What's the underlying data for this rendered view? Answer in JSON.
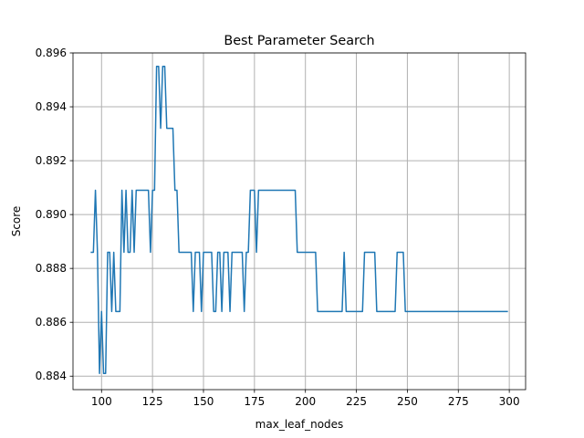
{
  "chart_data": {
    "type": "line",
    "title": "Best Parameter Search",
    "xlabel": "max_leaf_nodes",
    "ylabel": "Score",
    "xlim": [
      86,
      308
    ],
    "ylim": [
      0.8835,
      0.896
    ],
    "xticks": [
      100,
      125,
      150,
      175,
      200,
      225,
      250,
      275,
      300
    ],
    "xtick_labels": [
      "100",
      "125",
      "150",
      "175",
      "200",
      "225",
      "250",
      "275",
      "300"
    ],
    "yticks": [
      0.884,
      0.886,
      0.888,
      0.89,
      0.892,
      0.894,
      0.896
    ],
    "ytick_labels": [
      "0.884",
      "0.886",
      "0.888",
      "0.890",
      "0.892",
      "0.894",
      "0.896"
    ],
    "grid": true,
    "line_color": "#1f77b4",
    "series": [
      {
        "x": [
          95,
          96,
          97,
          98,
          99,
          100,
          101,
          102,
          103,
          104,
          105,
          106,
          107,
          108,
          109,
          110,
          111,
          112,
          113,
          114,
          115,
          116,
          117,
          118,
          119,
          120,
          121,
          122,
          123,
          124,
          125,
          126,
          127,
          128,
          129,
          130,
          131,
          132,
          133,
          134,
          135,
          136,
          137,
          138,
          139,
          140,
          141,
          142,
          143,
          144,
          145,
          146,
          147,
          148,
          149,
          150,
          151,
          152,
          153,
          154,
          155,
          156,
          157,
          158,
          159,
          160,
          161,
          162,
          163,
          164,
          165,
          166,
          167,
          168,
          169,
          170,
          171,
          172,
          173,
          174,
          175,
          176,
          177,
          178,
          179,
          180,
          181,
          182,
          183,
          184,
          185,
          186,
          187,
          188,
          189,
          190,
          191,
          192,
          193,
          194,
          195,
          196,
          197,
          198,
          199,
          200,
          201,
          202,
          203,
          204,
          205,
          206,
          207,
          208,
          209,
          210,
          211,
          212,
          213,
          214,
          215,
          216,
          217,
          218,
          219,
          220,
          221,
          222,
          223,
          224,
          225,
          226,
          227,
          228,
          229,
          230,
          231,
          232,
          233,
          234,
          235,
          236,
          237,
          238,
          239,
          240,
          241,
          242,
          243,
          244,
          245,
          246,
          247,
          248,
          249,
          250,
          251,
          252,
          253,
          254,
          255,
          256,
          257,
          258,
          259,
          260,
          261,
          262,
          263,
          264,
          265,
          266,
          267,
          268,
          269,
          270,
          271,
          272,
          273,
          274,
          275,
          276,
          277,
          278,
          279,
          280,
          281,
          282,
          283,
          284,
          285,
          286,
          287,
          288,
          289,
          290,
          291,
          292,
          293,
          294,
          295,
          296,
          297,
          298,
          299
        ],
        "y": [
          0.8886,
          0.8886,
          0.8909,
          0.8886,
          0.8841,
          0.8864,
          0.8841,
          0.8841,
          0.8886,
          0.8886,
          0.8864,
          0.8886,
          0.8864,
          0.8864,
          0.8864,
          0.8909,
          0.8886,
          0.8909,
          0.8886,
          0.8886,
          0.8909,
          0.8886,
          0.8909,
          0.8909,
          0.8909,
          0.8909,
          0.8909,
          0.8909,
          0.8909,
          0.8886,
          0.8909,
          0.8909,
          0.8955,
          0.8955,
          0.8932,
          0.8955,
          0.8955,
          0.8932,
          0.8932,
          0.8932,
          0.8932,
          0.8909,
          0.8909,
          0.8886,
          0.8886,
          0.8886,
          0.8886,
          0.8886,
          0.8886,
          0.8886,
          0.8864,
          0.8886,
          0.8886,
          0.8886,
          0.8864,
          0.8886,
          0.8886,
          0.8886,
          0.8886,
          0.8886,
          0.8864,
          0.8864,
          0.8886,
          0.8886,
          0.8864,
          0.8886,
          0.8886,
          0.8886,
          0.8864,
          0.8886,
          0.8886,
          0.8886,
          0.8886,
          0.8886,
          0.8886,
          0.8864,
          0.8886,
          0.8886,
          0.8909,
          0.8909,
          0.8909,
          0.8886,
          0.8909,
          0.8909,
          0.8909,
          0.8909,
          0.8909,
          0.8909,
          0.8909,
          0.8909,
          0.8909,
          0.8909,
          0.8909,
          0.8909,
          0.8909,
          0.8909,
          0.8909,
          0.8909,
          0.8909,
          0.8909,
          0.8909,
          0.8886,
          0.8886,
          0.8886,
          0.8886,
          0.8886,
          0.8886,
          0.8886,
          0.8886,
          0.8886,
          0.8886,
          0.8864,
          0.8864,
          0.8864,
          0.8864,
          0.8864,
          0.8864,
          0.8864,
          0.8864,
          0.8864,
          0.8864,
          0.8864,
          0.8864,
          0.8864,
          0.8886,
          0.8864,
          0.8864,
          0.8864,
          0.8864,
          0.8864,
          0.8864,
          0.8864,
          0.8864,
          0.8864,
          0.8886,
          0.8886,
          0.8886,
          0.8886,
          0.8886,
          0.8886,
          0.8864,
          0.8864,
          0.8864,
          0.8864,
          0.8864,
          0.8864,
          0.8864,
          0.8864,
          0.8864,
          0.8864,
          0.8886,
          0.8886,
          0.8886,
          0.8886,
          0.8864,
          0.8864,
          0.8864,
          0.8864,
          0.8864,
          0.8864,
          0.8864,
          0.8864,
          0.8864,
          0.8864,
          0.8864,
          0.8864,
          0.8864,
          0.8864,
          0.8864,
          0.8864,
          0.8864,
          0.8864,
          0.8864,
          0.8864,
          0.8864,
          0.8864,
          0.8864,
          0.8864,
          0.8864,
          0.8864,
          0.8864,
          0.8864,
          0.8864,
          0.8864,
          0.8864,
          0.8864,
          0.8864,
          0.8864,
          0.8864,
          0.8864,
          0.8864,
          0.8864,
          0.8864,
          0.8864,
          0.8864,
          0.8864,
          0.8864,
          0.8864,
          0.8864,
          0.8864,
          0.8864,
          0.8864,
          0.8864,
          0.8864,
          0.8864
        ]
      }
    ]
  }
}
